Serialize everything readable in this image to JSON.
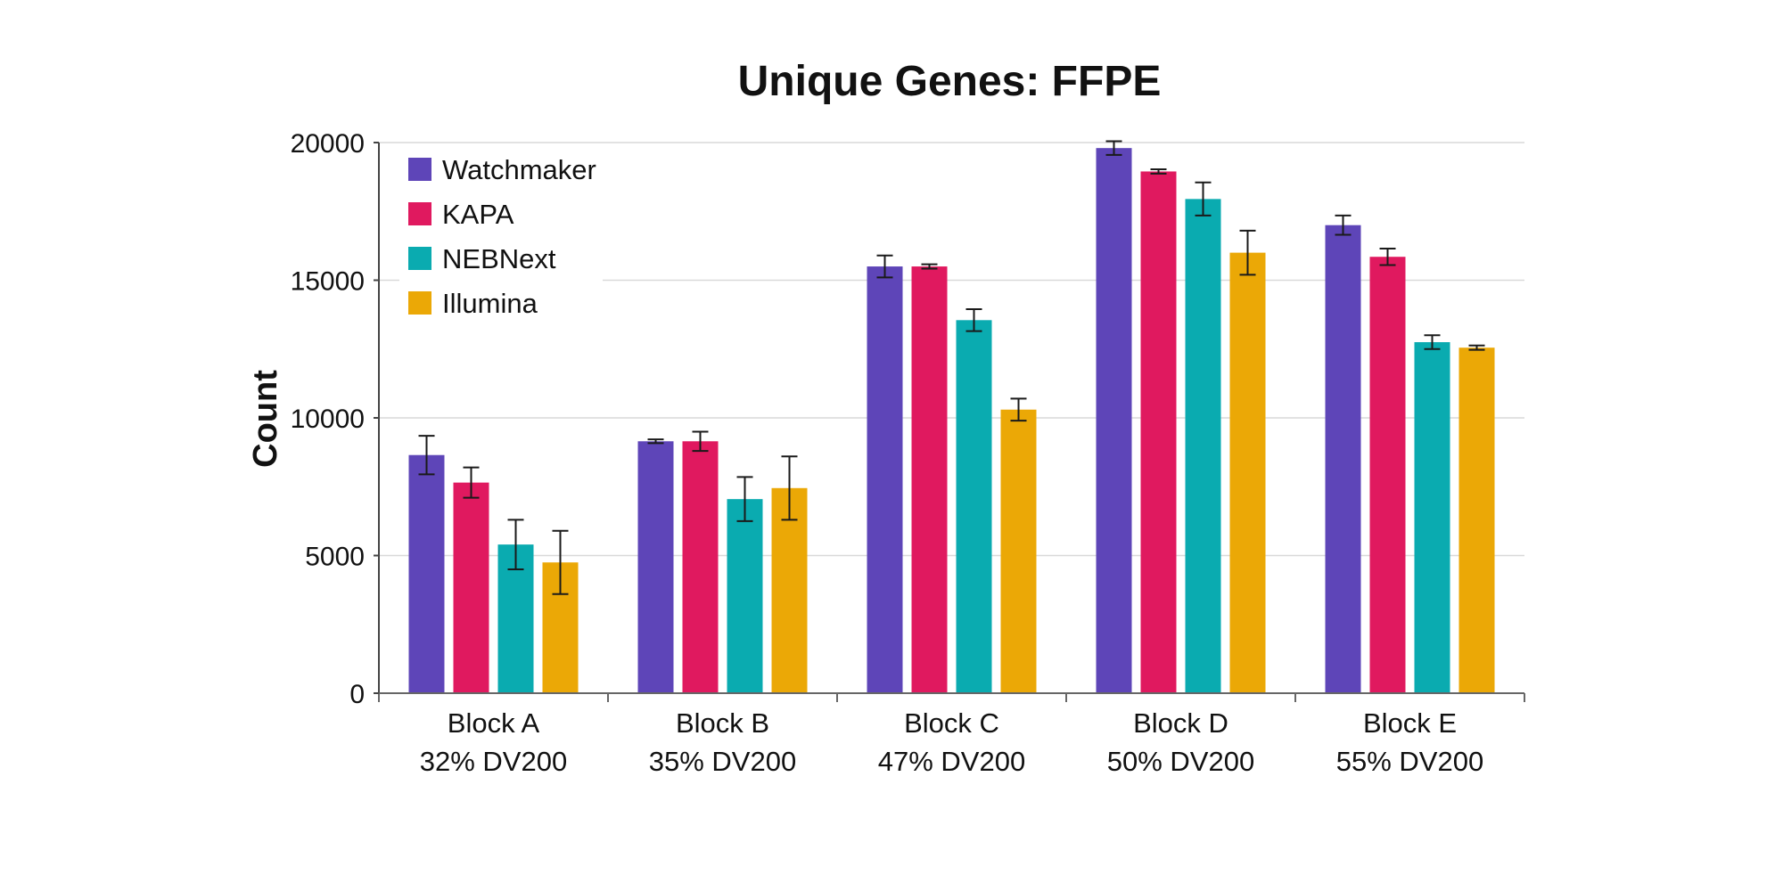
{
  "chart_data": {
    "type": "bar",
    "title": "Unique Genes: FFPE",
    "xlabel": "",
    "ylabel": "Count",
    "ylim": [
      0,
      20000
    ],
    "yticks": [
      "0",
      "5000",
      "10000",
      "15000",
      "20000"
    ],
    "grid": true,
    "legend_position": "top-left",
    "categories": [
      [
        "Block A",
        "32% DV200"
      ],
      [
        "Block B",
        "35% DV200"
      ],
      [
        "Block C",
        "47% DV200"
      ],
      [
        "Block D",
        "50% DV200"
      ],
      [
        "Block E",
        "55% DV200"
      ]
    ],
    "series": [
      {
        "name": "Watchmaker",
        "color": "#5e45b8",
        "values": [
          8650,
          9150,
          15500,
          19800,
          17000
        ],
        "errors": [
          700,
          70,
          400,
          250,
          350
        ]
      },
      {
        "name": "KAPA",
        "color": "#e0195f",
        "values": [
          7650,
          9150,
          15500,
          18950,
          15850
        ],
        "errors": [
          550,
          350,
          80,
          80,
          300
        ]
      },
      {
        "name": "NEBNext",
        "color": "#0aabb0",
        "values": [
          5400,
          7050,
          13550,
          17950,
          12750
        ],
        "errors": [
          900,
          800,
          400,
          600,
          250
        ]
      },
      {
        "name": "Illumina",
        "color": "#eba806",
        "values": [
          4750,
          7450,
          10300,
          16000,
          12550
        ],
        "errors": [
          1150,
          1150,
          400,
          800,
          80
        ]
      }
    ]
  }
}
